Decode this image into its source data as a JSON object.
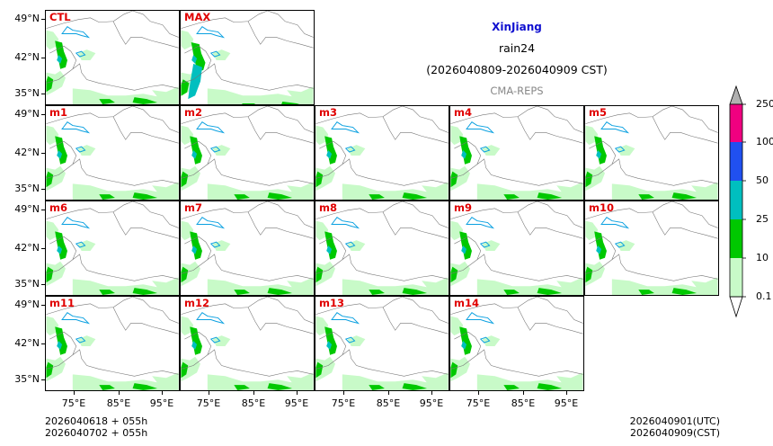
{
  "title": {
    "region": "XinJiang",
    "variable": "rain24",
    "period": "(2026040809-2026040909 CST)",
    "model": "CMA-REPS"
  },
  "panels": [
    "CTL",
    "MAX",
    "m1",
    "m2",
    "m3",
    "m4",
    "m5",
    "m6",
    "m7",
    "m8",
    "m9",
    "m10",
    "m11",
    "m12",
    "m13",
    "m14"
  ],
  "y_ticks": [
    "49°N",
    "42°N",
    "35°N"
  ],
  "x_ticks": [
    "75°E",
    "85°E",
    "95°E"
  ],
  "colorbar": {
    "labels": [
      "0.1",
      "10",
      "25",
      "50",
      "100",
      "250"
    ],
    "colors": [
      "#c8fac8",
      "#00c800",
      "#00bfbf",
      "#2050f0",
      "#f00080",
      "#b0b0b0"
    ]
  },
  "footer": {
    "init1": "2026040618  +  055h",
    "init2": "2026040702  +  055h",
    "valid_utc": "2026040901(UTC)",
    "valid_cst": "2026040909(CST)"
  }
}
